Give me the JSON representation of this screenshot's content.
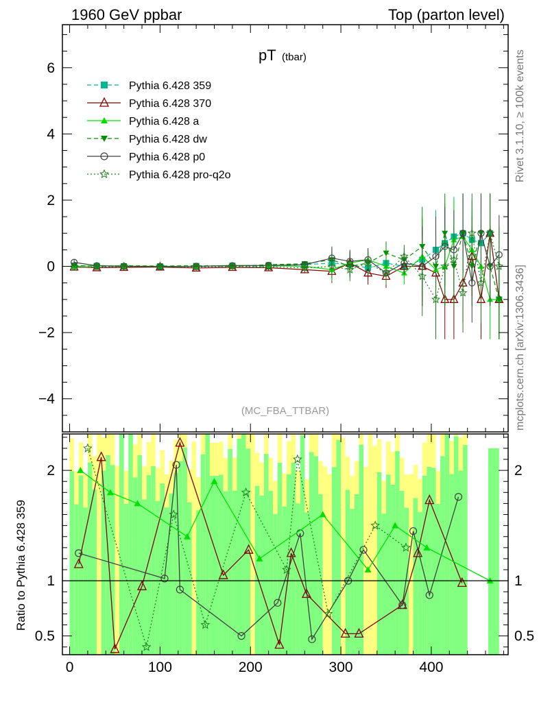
{
  "header": {
    "left": "1960 GeV ppbar",
    "right": "Top (parton level)"
  },
  "side_labels": {
    "rivet": "Rivet 3.1.10, ≥ 100k events",
    "mcplots": "mcplots.cern.ch [arXiv:1306.3436]"
  },
  "chart_data": {
    "type": "line",
    "title": "pT",
    "title_sub": "(tbar)",
    "annotation": "(MC_FBA_TTBAR)",
    "legend_position": "top-left",
    "main": {
      "xlim": [
        -8,
        485
      ],
      "ylim": [
        -5,
        7.3
      ],
      "yticks": [
        -4,
        -2,
        0,
        2,
        4,
        6
      ],
      "yticklabels": [
        "−4",
        "−2",
        "0",
        "2",
        "4",
        "6"
      ]
    },
    "ratio": {
      "ylabel": "Ratio to Pythia 6.428 359",
      "ylim": [
        0.33,
        2.33
      ],
      "yticks": [
        0.5,
        1,
        2
      ],
      "yticklabels": [
        "0.5",
        "1",
        "2"
      ],
      "band_colors": [
        "#ffff80",
        "#80ff80"
      ]
    },
    "xticks": [
      0,
      100,
      200,
      300,
      400
    ],
    "xticklabels": [
      "0",
      "100",
      "200",
      "300",
      "400"
    ],
    "series": [
      {
        "name": "Pythia 6.428 359",
        "color": "#00b890",
        "marker": "square",
        "dash": "6,4",
        "x": [
          5,
          30,
          60,
          100,
          140,
          180,
          220,
          260,
          290,
          310,
          330,
          350,
          370,
          390,
          405,
          415,
          425,
          435,
          445,
          455,
          465,
          475
        ],
        "y": [
          0.02,
          0.01,
          0.0,
          0.0,
          0.01,
          0.02,
          0.0,
          0.05,
          0.1,
          0.05,
          -0.05,
          0.1,
          0.0,
          0.2,
          0.5,
          0.7,
          0.9,
          1.0,
          0.8,
          0.7,
          1.0,
          -1.0
        ]
      },
      {
        "name": "Pythia 6.428 370",
        "color": "#800000",
        "marker": "triangle-open",
        "dash": "",
        "x": [
          5,
          30,
          60,
          100,
          140,
          180,
          220,
          260,
          290,
          310,
          330,
          350,
          370,
          390,
          405,
          415,
          425,
          435,
          445,
          455,
          465,
          475
        ],
        "y": [
          -0.02,
          -0.04,
          -0.03,
          -0.02,
          -0.05,
          -0.03,
          -0.04,
          -0.1,
          -0.15,
          0.1,
          -0.2,
          -0.3,
          0.0,
          0.0,
          -0.2,
          -1.0,
          -1.0,
          -0.5,
          0.3,
          -1.0,
          1.0,
          -1.0
        ]
      },
      {
        "name": "Pythia 6.428 a",
        "color": "#00e000",
        "marker": "triangle-up",
        "dash": "",
        "x": [
          5,
          30,
          60,
          100,
          140,
          180,
          220,
          260,
          290,
          310,
          330,
          350,
          370,
          390,
          405,
          415,
          425,
          435,
          445,
          455,
          465,
          475
        ],
        "y": [
          0.0,
          0.02,
          0.01,
          0.0,
          0.0,
          0.03,
          0.02,
          0.0,
          -0.1,
          0.1,
          0.2,
          0.0,
          -0.2,
          0.3,
          -0.1,
          0.0,
          0.8,
          0.9,
          0.5,
          0.0,
          -1.0,
          -1.0
        ]
      },
      {
        "name": "Pythia 6.428 dw",
        "color": "#009000",
        "marker": "triangle-down",
        "dash": "6,4",
        "x": [
          5,
          30,
          60,
          100,
          140,
          180,
          220,
          260,
          290,
          310,
          330,
          350,
          370,
          390,
          405,
          415,
          425,
          435,
          445,
          455,
          465,
          475
        ],
        "y": [
          0.03,
          0.0,
          0.02,
          0.01,
          0.02,
          0.0,
          0.05,
          0.08,
          0.2,
          0.0,
          0.1,
          0.4,
          0.2,
          0.6,
          0.0,
          1.0,
          0.0,
          1.0,
          0.0,
          1.0,
          0.0,
          -1.0
        ]
      },
      {
        "name": "Pythia 6.428 p0",
        "color": "#404040",
        "marker": "circle-open",
        "dash": "",
        "x": [
          5,
          30,
          60,
          100,
          140,
          180,
          220,
          260,
          290,
          310,
          330,
          350,
          370,
          390,
          405,
          415,
          425,
          435,
          445,
          455,
          465,
          475
        ],
        "y": [
          0.12,
          0.02,
          0.0,
          -0.01,
          0.0,
          0.02,
          0.03,
          0.05,
          0.25,
          0.15,
          0.2,
          -0.2,
          0.1,
          0.0,
          0.3,
          0.6,
          0.5,
          1.0,
          -0.5,
          1.0,
          0.0,
          0.35
        ]
      },
      {
        "name": "Pythia 6.428 pro-q2o",
        "color": "#208020",
        "marker": "star-open",
        "dash": "2,3",
        "x": [
          5,
          30,
          60,
          100,
          140,
          180,
          220,
          260,
          290,
          310,
          330,
          350,
          370,
          390,
          405,
          415,
          425,
          435,
          445,
          455,
          465,
          475
        ],
        "y": [
          -0.03,
          -0.02,
          0.0,
          0.0,
          -0.02,
          0.0,
          -0.01,
          -0.05,
          0.0,
          -0.1,
          0.1,
          -0.2,
          0.3,
          -0.3,
          -1.0,
          0.0,
          0.2,
          -0.8,
          1.0,
          -0.5,
          1.0,
          0.0
        ]
      }
    ],
    "ratio_points": [
      {
        "series": 1,
        "x": [
          10,
          35,
          50,
          80,
          122,
          170,
          198,
          232,
          245,
          262,
          305,
          320,
          368,
          385,
          398,
          434
        ],
        "y": [
          1.15,
          2.12,
          0.38,
          0.95,
          2.25,
          1.05,
          1.28,
          0.42,
          1.25,
          0.88,
          0.52,
          0.52,
          0.78,
          1.25,
          1.73,
          0.98
        ]
      },
      {
        "series": 4,
        "x": [
          10,
          105,
          118,
          122,
          190,
          230,
          255,
          268,
          308,
          325,
          368,
          380,
          398,
          430
        ],
        "y": [
          1.25,
          1.02,
          2.05,
          0.92,
          0.5,
          0.8,
          1.43,
          0.47,
          1.0,
          1.28,
          0.78,
          1.45,
          0.87,
          1.76
        ]
      },
      {
        "series": 2,
        "x": [
          12,
          45,
          75,
          130,
          160,
          210,
          280,
          330,
          360,
          395,
          465
        ],
        "y": [
          2.0,
          1.8,
          1.7,
          1.4,
          1.9,
          1.2,
          1.6,
          1.1,
          1.5,
          1.3,
          1.0
        ]
      },
      {
        "series": 5,
        "x": [
          20,
          85,
          115,
          150,
          195,
          240,
          252,
          286,
          338,
          372
        ],
        "y": [
          2.2,
          0.4,
          1.6,
          0.6,
          1.8,
          1.1,
          2.1,
          0.7,
          1.5,
          1.3
        ]
      }
    ]
  }
}
